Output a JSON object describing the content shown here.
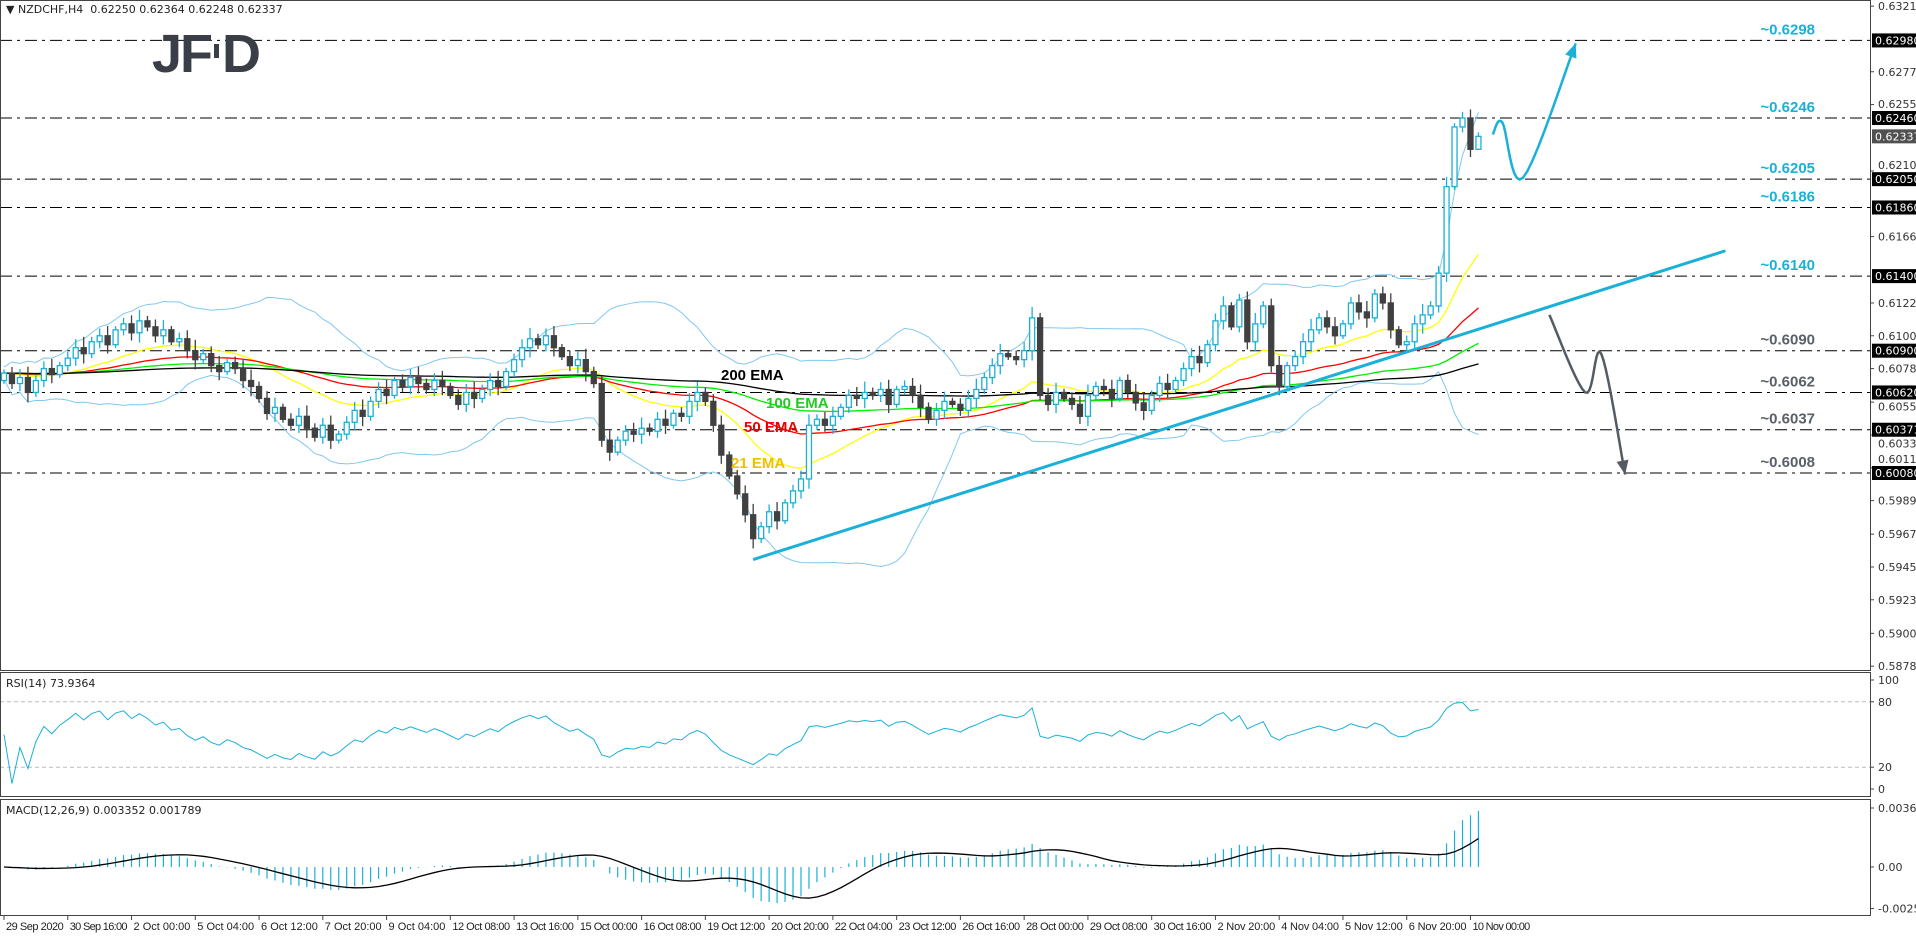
{
  "header": {
    "symbol_line": "NZDCHF,H4  0.62250 0.62364 0.62248 0.62337"
  },
  "logo": {
    "text": "JFD"
  },
  "colors": {
    "bull": "#1ab0d8",
    "bear": "#404040",
    "bands": "#80c8f0",
    "ema21": "#ffff00",
    "ema50": "#ff0000",
    "ema100": "#00ee00",
    "ema200": "#000000",
    "scenario_up": "#1ab0d8",
    "scenario_down": "#555b63",
    "rsi": "#1ab0d8",
    "macd_hist": "#1ab0d8",
    "macd_signal": "#000000"
  },
  "chart_data": [
    {
      "type": "candlestick",
      "title": "NZDCHF,H4",
      "ohlc_last": {
        "open": 0.6225,
        "high": 0.62364,
        "low": 0.62248,
        "close": 0.62337
      },
      "ylim": [
        0.58785,
        0.6321
      ],
      "y_ticks": [
        "0.63210",
        "0.62770",
        "0.62550",
        "0.62105",
        "0.61665",
        "0.61220",
        "0.61000",
        "0.60780",
        "0.60555",
        "0.60335",
        "0.60115",
        "0.59895",
        "0.59670",
        "0.59450",
        "0.59230",
        "0.59005",
        "0.58785"
      ],
      "x_tick_labels": [
        "29 Sep 2020",
        "30 Sep 16:00",
        "2 Oct 00:00",
        "5 Oct 04:00",
        "6 Oct 12:00",
        "7 Oct 20:00",
        "9 Oct 04:00",
        "12 Oct 08:00",
        "13 Oct 16:00",
        "15 Oct 00:00",
        "16 Oct 08:00",
        "19 Oct 12:00",
        "20 Oct 20:00",
        "22 Oct 04:00",
        "23 Oct 12:00",
        "26 Oct 16:00",
        "28 Oct 00:00",
        "29 Oct 08:00",
        "30 Oct 16:00",
        "2 Nov 20:00",
        "4 Nov 04:00",
        "5 Nov 12:00",
        "6 Nov 20:00",
        "10 Nov 00:00"
      ],
      "closes": [
        0.6075,
        0.6068,
        0.6072,
        0.6062,
        0.607,
        0.6078,
        0.6074,
        0.608,
        0.6085,
        0.6092,
        0.6088,
        0.6096,
        0.61,
        0.6094,
        0.6104,
        0.6108,
        0.6102,
        0.611,
        0.6106,
        0.61,
        0.6104,
        0.6096,
        0.6098,
        0.609,
        0.6084,
        0.6088,
        0.608,
        0.6076,
        0.6082,
        0.6078,
        0.607,
        0.6066,
        0.6058,
        0.6048,
        0.6052,
        0.6044,
        0.604,
        0.6046,
        0.6038,
        0.6032,
        0.604,
        0.603,
        0.6034,
        0.6042,
        0.605,
        0.6046,
        0.6056,
        0.6064,
        0.606,
        0.607,
        0.6066,
        0.6072,
        0.6068,
        0.6064,
        0.607,
        0.6066,
        0.606,
        0.6054,
        0.6062,
        0.6058,
        0.6064,
        0.607,
        0.6066,
        0.6076,
        0.6084,
        0.6092,
        0.6098,
        0.6094,
        0.61,
        0.6092,
        0.6086,
        0.608,
        0.6084,
        0.6076,
        0.6068,
        0.603,
        0.6022,
        0.603,
        0.6036,
        0.6034,
        0.6038,
        0.6036,
        0.6044,
        0.604,
        0.6048,
        0.6046,
        0.6056,
        0.6062,
        0.6056,
        0.604,
        0.602,
        0.6006,
        0.5994,
        0.598,
        0.5964,
        0.5972,
        0.5982,
        0.5976,
        0.5988,
        0.5996,
        0.6004,
        0.604,
        0.6044,
        0.604,
        0.6046,
        0.6052,
        0.606,
        0.6058,
        0.6062,
        0.606,
        0.6064,
        0.6054,
        0.6064,
        0.6066,
        0.606,
        0.6052,
        0.6044,
        0.605,
        0.6056,
        0.6054,
        0.605,
        0.6058,
        0.6064,
        0.6072,
        0.608,
        0.6088,
        0.6086,
        0.6084,
        0.609,
        0.6112,
        0.606,
        0.6054,
        0.6062,
        0.6058,
        0.6054,
        0.6046,
        0.606,
        0.6066,
        0.6064,
        0.6058,
        0.607,
        0.6062,
        0.6055,
        0.605,
        0.606,
        0.6068,
        0.6064,
        0.607,
        0.6078,
        0.6086,
        0.6082,
        0.6094,
        0.611,
        0.612,
        0.6106,
        0.6124,
        0.6096,
        0.6108,
        0.612,
        0.608,
        0.6066,
        0.608,
        0.6086,
        0.6096,
        0.6104,
        0.6112,
        0.6106,
        0.61,
        0.6108,
        0.6122,
        0.6116,
        0.6112,
        0.6128,
        0.6122,
        0.6104,
        0.6094,
        0.6096,
        0.6108,
        0.6114,
        0.612,
        0.6142,
        0.62,
        0.624,
        0.6246,
        0.6225,
        0.62337
      ],
      "emas": [
        {
          "name": "21 EMA",
          "period": 21,
          "color_key": "ema21",
          "label_color": "#f0c000"
        },
        {
          "name": "50 EMA",
          "period": 50,
          "color_key": "ema50",
          "label_color": "#ee0000"
        },
        {
          "name": "100 EMA",
          "period": 100,
          "color_key": "ema100",
          "label_color": "#22cc22"
        },
        {
          "name": "200 EMA",
          "period": 200,
          "color_key": "ema200",
          "label_color": "#000000"
        }
      ],
      "levels": [
        {
          "value": 0.6298,
          "label": "~0.6298",
          "axis": "0.62980",
          "color": "#1ab0d8"
        },
        {
          "value": 0.6246,
          "label": "~0.6246",
          "axis": "0.62460",
          "color": "#1ab0d8"
        },
        {
          "value": 0.6205,
          "label": "~0.6205",
          "axis": "0.62050",
          "color": "#1ab0d8"
        },
        {
          "value": 0.6186,
          "label": "~0.6186",
          "axis": "0.61860",
          "color": "#1ab0d8"
        },
        {
          "value": 0.614,
          "label": "~0.6140",
          "axis": "0.61400",
          "color": "#1ab0d8"
        },
        {
          "value": 0.609,
          "label": "~0.6090",
          "axis": "0.60900",
          "color": "#5a6068"
        },
        {
          "value": 0.6062,
          "label": "~0.6062",
          "axis": "0.60620",
          "color": "#5a6068"
        },
        {
          "value": 0.6037,
          "label": "~0.6037",
          "axis": "0.60371",
          "color": "#5a6068"
        },
        {
          "value": 0.6008,
          "label": "~0.6008",
          "axis": "0.60080",
          "color": "#5a6068"
        }
      ],
      "current_price": "0.62337",
      "trendline": {
        "from": {
          "bar": 94,
          "price": 0.595
        },
        "to": {
          "bar": 216,
          "price": 0.6157
        }
      },
      "scenario_up": [
        {
          "bar": 186.8,
          "price": 0.6235
        },
        {
          "bar": 188.0,
          "price": 0.6243
        },
        {
          "bar": 190.6,
          "price": 0.6206
        },
        {
          "bar": 197.2,
          "price": 0.6296
        }
      ],
      "scenario_down": [
        {
          "bar": 193.9,
          "price": 0.6114
        },
        {
          "bar": 198.4,
          "price": 0.6062
        },
        {
          "bar": 200.4,
          "price": 0.6088
        },
        {
          "bar": 203.4,
          "price": 0.6007
        }
      ]
    },
    {
      "type": "line",
      "title": "RSI(14) 73.9364",
      "period": 14,
      "ylim": [
        0,
        100
      ],
      "y_ticks": [
        "100",
        "80",
        "20",
        "0"
      ],
      "levels": [
        80,
        20
      ]
    },
    {
      "type": "bar",
      "title": "MACD(12,26,9) 0.003352 0.001789",
      "params": [
        12,
        26,
        9
      ],
      "ylim": [
        -0.00256,
        0.003634
      ],
      "y_ticks": [
        "0.003634",
        "0.00",
        "-0.00256"
      ]
    }
  ]
}
